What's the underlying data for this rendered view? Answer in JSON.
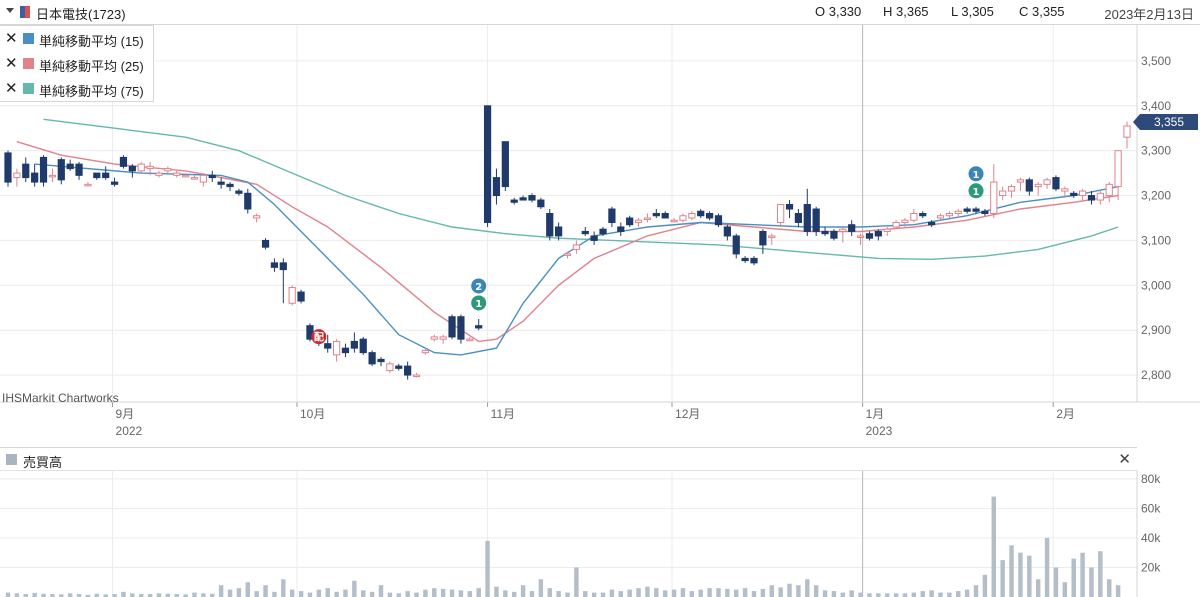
{
  "header": {
    "ticker": "日本電技(1723)",
    "open": "O 3,330",
    "high": "H 3,365",
    "low": "L 3,305",
    "close": "C 3,355",
    "date": "2023年2月13日"
  },
  "legend": [
    {
      "label": "単純移動平均 (15)",
      "color": "#4a8fc4"
    },
    {
      "label": "単純移動平均 (25)",
      "color": "#e0828c"
    },
    {
      "label": "単純移動平均 (75)",
      "color": "#64b8ac"
    }
  ],
  "watermark": "IHSMarkit Chartworks",
  "last_price_label": "3,355",
  "volume_panel": {
    "label": "売買高"
  },
  "chart_data": {
    "type": "candlestick",
    "price_axis": {
      "ylim": [
        2740,
        3580
      ],
      "ticks": [
        "2,800",
        "2,900",
        "3,000",
        "3,100",
        "3,200",
        "3,300",
        "3,400",
        "3,500"
      ]
    },
    "x_axis": {
      "month_labels": [
        "9月",
        "10月",
        "11月",
        "12月",
        "1月",
        "2月"
      ],
      "year_labels": [
        "2022",
        "2023"
      ],
      "first_date": "2022-08-15",
      "last_date": "2023-02-13"
    },
    "ohlc": [
      [
        3295,
        3300,
        3220,
        3230
      ],
      [
        3240,
        3260,
        3220,
        3250
      ],
      [
        3270,
        3285,
        3230,
        3240
      ],
      [
        3250,
        3270,
        3220,
        3230
      ],
      [
        3285,
        3290,
        3220,
        3230
      ],
      [
        3245,
        3260,
        3230,
        3245
      ],
      [
        3280,
        3285,
        3225,
        3235
      ],
      [
        3270,
        3280,
        3255,
        3260
      ],
      [
        3270,
        3275,
        3235,
        3245
      ],
      [
        3225,
        3230,
        3220,
        3225
      ],
      [
        3250,
        3250,
        3235,
        3240
      ],
      [
        3250,
        3265,
        3235,
        3240
      ],
      [
        3230,
        3240,
        3220,
        3225
      ],
      [
        3285,
        3290,
        3260,
        3265
      ],
      [
        3265,
        3270,
        3240,
        3255
      ],
      [
        3255,
        3275,
        3250,
        3270
      ],
      [
        3260,
        3275,
        3245,
        3265
      ],
      [
        3245,
        3255,
        3240,
        3250
      ],
      [
        3255,
        3265,
        3250,
        3260
      ],
      [
        3245,
        3255,
        3240,
        3250
      ],
      [
        3245,
        3250,
        3240,
        3245
      ],
      [
        3240,
        3245,
        3235,
        3240
      ],
      [
        3230,
        3250,
        3220,
        3245
      ],
      [
        3245,
        3255,
        3230,
        3240
      ],
      [
        3230,
        3240,
        3215,
        3225
      ],
      [
        3225,
        3230,
        3210,
        3220
      ],
      [
        3210,
        3215,
        3200,
        3205
      ],
      [
        3205,
        3215,
        3160,
        3170
      ],
      [
        3150,
        3160,
        3140,
        3155
      ],
      [
        3100,
        3105,
        3080,
        3085
      ],
      [
        3050,
        3060,
        3030,
        3040
      ],
      [
        3050,
        3060,
        2960,
        3035
      ],
      [
        2960,
        3000,
        2955,
        2995
      ],
      [
        2985,
        2990,
        2960,
        2965
      ],
      [
        2910,
        2915,
        2875,
        2880
      ],
      [
        2880,
        2890,
        2865,
        2875
      ],
      [
        2870,
        2890,
        2850,
        2860
      ],
      [
        2845,
        2880,
        2830,
        2875
      ],
      [
        2860,
        2870,
        2840,
        2850
      ],
      [
        2875,
        2895,
        2850,
        2860
      ],
      [
        2880,
        2885,
        2845,
        2850
      ],
      [
        2850,
        2855,
        2820,
        2825
      ],
      [
        2835,
        2840,
        2820,
        2830
      ],
      [
        2810,
        2830,
        2805,
        2825
      ],
      [
        2820,
        2825,
        2810,
        2815
      ],
      [
        2820,
        2830,
        2790,
        2800
      ],
      [
        2800,
        2805,
        2795,
        2800
      ],
      [
        2850,
        2860,
        2845,
        2855
      ],
      [
        2880,
        2890,
        2875,
        2885
      ],
      [
        2880,
        2890,
        2870,
        2885
      ],
      [
        2930,
        2935,
        2880,
        2885
      ],
      [
        2930,
        2935,
        2870,
        2880
      ],
      [
        2880,
        2885,
        2875,
        2880
      ],
      [
        2910,
        2925,
        2900,
        2905
      ],
      [
        3400,
        3400,
        3130,
        3140
      ],
      [
        3240,
        3260,
        3180,
        3200
      ],
      [
        3320,
        3320,
        3210,
        3220
      ],
      [
        3190,
        3195,
        3180,
        3185
      ],
      [
        3195,
        3200,
        3190,
        3190
      ],
      [
        3200,
        3205,
        3185,
        3190
      ],
      [
        3190,
        3195,
        3170,
        3175
      ],
      [
        3160,
        3170,
        3100,
        3110
      ],
      [
        3130,
        3140,
        3100,
        3110
      ],
      [
        3070,
        3075,
        3060,
        3070
      ],
      [
        3080,
        3100,
        3070,
        3090
      ],
      [
        3120,
        3130,
        3110,
        3115
      ],
      [
        3110,
        3120,
        3090,
        3100
      ],
      [
        3125,
        3130,
        3110,
        3115
      ],
      [
        3170,
        3175,
        3130,
        3140
      ],
      [
        3130,
        3140,
        3110,
        3120
      ],
      [
        3150,
        3155,
        3130,
        3135
      ],
      [
        3140,
        3150,
        3130,
        3145
      ],
      [
        3150,
        3160,
        3140,
        3150
      ],
      [
        3160,
        3170,
        3150,
        3155
      ],
      [
        3160,
        3165,
        3150,
        3150
      ],
      [
        3145,
        3150,
        3140,
        3145
      ],
      [
        3145,
        3160,
        3140,
        3155
      ],
      [
        3150,
        3165,
        3145,
        3160
      ],
      [
        3165,
        3170,
        3150,
        3155
      ],
      [
        3160,
        3165,
        3145,
        3150
      ],
      [
        3155,
        3160,
        3130,
        3135
      ],
      [
        3130,
        3135,
        3100,
        3110
      ],
      [
        3110,
        3115,
        3060,
        3070
      ],
      [
        3060,
        3065,
        3050,
        3055
      ],
      [
        3060,
        3065,
        3045,
        3050
      ],
      [
        3120,
        3125,
        3070,
        3090
      ],
      [
        3110,
        3115,
        3090,
        3110
      ],
      [
        3140,
        3180,
        3130,
        3180
      ],
      [
        3180,
        3190,
        3150,
        3170
      ],
      [
        3160,
        3170,
        3130,
        3140
      ],
      [
        3180,
        3215,
        3110,
        3120
      ],
      [
        3170,
        3175,
        3110,
        3120
      ],
      [
        3120,
        3130,
        3110,
        3115
      ],
      [
        3120,
        3125,
        3100,
        3105
      ],
      [
        3120,
        3130,
        3095,
        3125
      ],
      [
        3135,
        3145,
        3110,
        3120
      ],
      [
        3110,
        3115,
        3090,
        3110
      ],
      [
        3115,
        3120,
        3100,
        3105
      ],
      [
        3120,
        3125,
        3100,
        3110
      ],
      [
        3120,
        3130,
        3110,
        3125
      ],
      [
        3130,
        3145,
        3125,
        3140
      ],
      [
        3140,
        3150,
        3130,
        3145
      ],
      [
        3145,
        3170,
        3140,
        3160
      ],
      [
        3160,
        3165,
        3150,
        3155
      ],
      [
        3140,
        3145,
        3130,
        3135
      ],
      [
        3150,
        3160,
        3145,
        3155
      ],
      [
        3155,
        3165,
        3150,
        3160
      ],
      [
        3160,
        3170,
        3150,
        3165
      ],
      [
        3170,
        3175,
        3160,
        3165
      ],
      [
        3170,
        3175,
        3160,
        3165
      ],
      [
        3165,
        3170,
        3155,
        3160
      ],
      [
        3160,
        3270,
        3150,
        3230
      ],
      [
        3200,
        3220,
        3190,
        3210
      ],
      [
        3210,
        3225,
        3195,
        3220
      ],
      [
        3230,
        3240,
        3210,
        3235
      ],
      [
        3235,
        3240,
        3200,
        3210
      ],
      [
        3220,
        3230,
        3200,
        3225
      ],
      [
        3225,
        3240,
        3215,
        3235
      ],
      [
        3240,
        3245,
        3210,
        3215
      ],
      [
        3210,
        3220,
        3195,
        3215
      ],
      [
        3205,
        3210,
        3195,
        3200
      ],
      [
        3200,
        3215,
        3190,
        3210
      ],
      [
        3200,
        3210,
        3180,
        3190
      ],
      [
        3190,
        3210,
        3180,
        3205
      ],
      [
        3200,
        3230,
        3185,
        3225
      ],
      [
        3220,
        3300,
        3190,
        3300
      ],
      [
        3330,
        3365,
        3305,
        3355
      ]
    ],
    "sma15": [
      [
        3,
        3270
      ],
      [
        15,
        3250
      ],
      [
        24,
        3245
      ],
      [
        27,
        3230
      ],
      [
        30,
        3180
      ],
      [
        35,
        3080
      ],
      [
        40,
        2980
      ],
      [
        44,
        2890
      ],
      [
        48,
        2850
      ],
      [
        51,
        2845
      ],
      [
        55,
        2860
      ],
      [
        58,
        2960
      ],
      [
        62,
        3060
      ],
      [
        66,
        3110
      ],
      [
        72,
        3130
      ],
      [
        78,
        3140
      ],
      [
        84,
        3135
      ],
      [
        90,
        3130
      ],
      [
        96,
        3130
      ],
      [
        102,
        3135
      ],
      [
        108,
        3155
      ],
      [
        114,
        3185
      ],
      [
        120,
        3200
      ],
      [
        125,
        3220
      ]
    ],
    "sma25": [
      [
        1,
        3320
      ],
      [
        6,
        3290
      ],
      [
        12,
        3270
      ],
      [
        20,
        3255
      ],
      [
        24,
        3240
      ],
      [
        28,
        3225
      ],
      [
        32,
        3175
      ],
      [
        36,
        3130
      ],
      [
        42,
        3040
      ],
      [
        48,
        2940
      ],
      [
        53,
        2875
      ],
      [
        55,
        2880
      ],
      [
        58,
        2920
      ],
      [
        62,
        3000
      ],
      [
        66,
        3060
      ],
      [
        72,
        3110
      ],
      [
        78,
        3140
      ],
      [
        84,
        3130
      ],
      [
        90,
        3120
      ],
      [
        96,
        3120
      ],
      [
        102,
        3130
      ],
      [
        108,
        3145
      ],
      [
        114,
        3170
      ],
      [
        120,
        3185
      ],
      [
        125,
        3200
      ]
    ],
    "sma75": [
      [
        4,
        3370
      ],
      [
        12,
        3350
      ],
      [
        20,
        3330
      ],
      [
        26,
        3300
      ],
      [
        32,
        3250
      ],
      [
        38,
        3200
      ],
      [
        44,
        3160
      ],
      [
        50,
        3130
      ],
      [
        56,
        3115
      ],
      [
        62,
        3105
      ],
      [
        68,
        3100
      ],
      [
        74,
        3095
      ],
      [
        80,
        3090
      ],
      [
        86,
        3080
      ],
      [
        92,
        3070
      ],
      [
        98,
        3060
      ],
      [
        104,
        3058
      ],
      [
        110,
        3065
      ],
      [
        116,
        3080
      ],
      [
        122,
        3110
      ],
      [
        125,
        3130
      ]
    ],
    "volume": {
      "ylim": [
        0,
        86000
      ],
      "ticks": [
        "20k",
        "40k",
        "60k",
        "80k"
      ],
      "values": [
        3000,
        2500,
        2000,
        2800,
        2200,
        2000,
        1800,
        2500,
        2000,
        1500,
        2200,
        1800,
        2000,
        3500,
        2500,
        2000,
        2000,
        2500,
        2200,
        2000,
        1800,
        3000,
        2500,
        2200,
        8000,
        5000,
        6000,
        10000,
        4000,
        8000,
        3500,
        12000,
        5000,
        4000,
        3000,
        5000,
        6000,
        3500,
        5000,
        11000,
        4500,
        3500,
        8000,
        3000,
        2500,
        4000,
        3000,
        5000,
        6000,
        5500,
        5000,
        4500,
        4000,
        6000,
        38000,
        7000,
        4500,
        3500,
        8000,
        4000,
        12000,
        6000,
        4000,
        3000,
        20000,
        4000,
        3000,
        3000,
        5000,
        4000,
        5000,
        6000,
        7000,
        6000,
        4500,
        5000,
        6000,
        4000,
        5000,
        6000,
        6000,
        5500,
        5000,
        6000,
        4000,
        5500,
        8000,
        6500,
        9000,
        8000,
        12000,
        8000,
        4500,
        4000,
        3000,
        4500,
        3000,
        2500,
        2500,
        2500,
        2500,
        2500,
        3000,
        4000,
        4500,
        3000,
        3000,
        4000,
        5000,
        8000,
        15000,
        68000,
        25000,
        35000,
        30000,
        28000,
        12000,
        40000,
        20000,
        10000,
        26000,
        30000,
        20000,
        31000,
        12000,
        8000
      ]
    },
    "markers": [
      {
        "index": 35,
        "label": "配",
        "color": "#cc2b2b"
      },
      {
        "index": 53,
        "label": "2",
        "color": "#3a86b8"
      },
      {
        "index": 53,
        "label": "1",
        "color": "#2a9a7a"
      },
      {
        "index": 109,
        "label": "1",
        "color": "#3a86b8"
      },
      {
        "index": 109,
        "label": "1",
        "color": "#2a9a7a"
      }
    ]
  }
}
